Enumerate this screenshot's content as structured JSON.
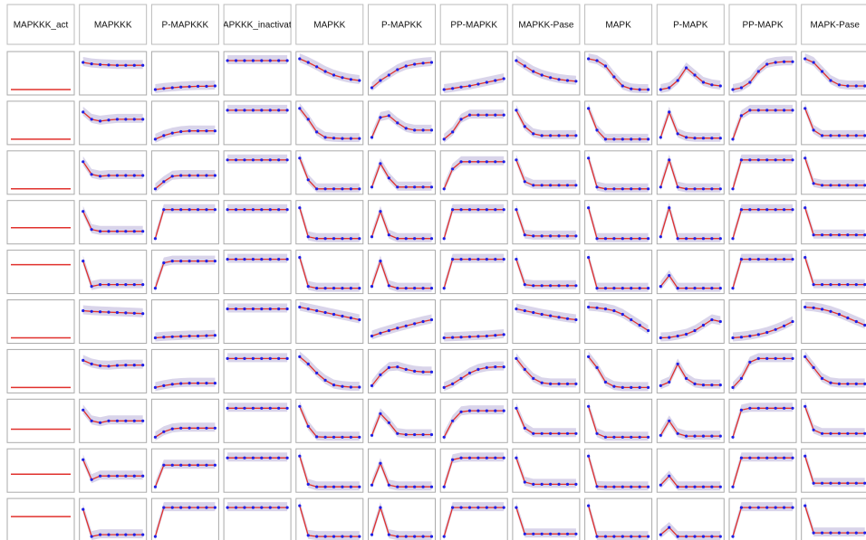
{
  "chart_data": {
    "type": "small-multiples",
    "columns": [
      "MAPKKK_act",
      "MAPKKK",
      "P-MAPKKK",
      "MAPKKK_inactivator",
      "MAPKK",
      "P-MAPKK",
      "PP-MAPKK",
      "MAPKK-Pase",
      "MAPK",
      "P-MAPK",
      "PP-MAPK",
      "MAPK-Pase"
    ],
    "line_color": "#e0302c",
    "dot_color": "#1f1fe6",
    "band_color": "#b9b0d8",
    "rows": [
      {
        "act": 0.05,
        "curves": [
          [
            0.8,
            0.76,
            0.74,
            0.73,
            0.72,
            0.72,
            0.72,
            0.72
          ],
          [
            0.05,
            0.08,
            0.1,
            0.12,
            0.13,
            0.14,
            0.14,
            0.15
          ],
          [
            0.85,
            0.85,
            0.85,
            0.85,
            0.85,
            0.85,
            0.85,
            0.85
          ],
          [
            0.9,
            0.8,
            0.68,
            0.55,
            0.45,
            0.38,
            0.33,
            0.3
          ],
          [
            0.1,
            0.3,
            0.45,
            0.6,
            0.7,
            0.75,
            0.78,
            0.8
          ],
          [
            0.05,
            0.08,
            0.12,
            0.15,
            0.2,
            0.25,
            0.3,
            0.35
          ],
          [
            0.85,
            0.7,
            0.55,
            0.45,
            0.38,
            0.33,
            0.3,
            0.28
          ],
          [
            0.9,
            0.85,
            0.7,
            0.4,
            0.15,
            0.07,
            0.05,
            0.05
          ],
          [
            0.05,
            0.1,
            0.3,
            0.65,
            0.45,
            0.25,
            0.18,
            0.15
          ],
          [
            0.05,
            0.1,
            0.25,
            0.55,
            0.75,
            0.8,
            0.82,
            0.82
          ],
          [
            0.9,
            0.8,
            0.55,
            0.3,
            0.18,
            0.15,
            0.15,
            0.15
          ]
        ]
      },
      {
        "act": 0.05,
        "curves": [
          [
            0.8,
            0.6,
            0.55,
            0.58,
            0.6,
            0.6,
            0.6,
            0.6
          ],
          [
            0.05,
            0.15,
            0.22,
            0.26,
            0.28,
            0.28,
            0.28,
            0.28
          ],
          [
            0.85,
            0.85,
            0.85,
            0.85,
            0.85,
            0.85,
            0.85,
            0.85
          ],
          [
            0.9,
            0.6,
            0.25,
            0.1,
            0.08,
            0.07,
            0.07,
            0.07
          ],
          [
            0.1,
            0.65,
            0.7,
            0.5,
            0.35,
            0.3,
            0.3,
            0.3
          ],
          [
            0.05,
            0.25,
            0.6,
            0.72,
            0.72,
            0.72,
            0.72,
            0.72
          ],
          [
            0.85,
            0.4,
            0.2,
            0.15,
            0.15,
            0.15,
            0.15,
            0.15
          ],
          [
            0.9,
            0.3,
            0.05,
            0.05,
            0.05,
            0.05,
            0.05,
            0.05
          ],
          [
            0.1,
            0.8,
            0.2,
            0.1,
            0.08,
            0.08,
            0.08,
            0.08
          ],
          [
            0.05,
            0.7,
            0.85,
            0.85,
            0.85,
            0.85,
            0.85,
            0.85
          ],
          [
            0.9,
            0.3,
            0.15,
            0.15,
            0.15,
            0.15,
            0.15,
            0.15
          ]
        ]
      },
      {
        "act": 0.05,
        "curves": [
          [
            0.8,
            0.45,
            0.4,
            0.42,
            0.42,
            0.42,
            0.42,
            0.42
          ],
          [
            0.05,
            0.25,
            0.4,
            0.42,
            0.42,
            0.42,
            0.42,
            0.42
          ],
          [
            0.85,
            0.85,
            0.85,
            0.85,
            0.85,
            0.85,
            0.85,
            0.85
          ],
          [
            0.9,
            0.3,
            0.05,
            0.05,
            0.05,
            0.05,
            0.05,
            0.05
          ],
          [
            0.1,
            0.75,
            0.35,
            0.1,
            0.1,
            0.1,
            0.1,
            0.1
          ],
          [
            0.05,
            0.6,
            0.8,
            0.8,
            0.8,
            0.8,
            0.8,
            0.8
          ],
          [
            0.85,
            0.25,
            0.15,
            0.15,
            0.15,
            0.15,
            0.15,
            0.15
          ],
          [
            0.9,
            0.1,
            0.05,
            0.05,
            0.05,
            0.05,
            0.05,
            0.05
          ],
          [
            0.1,
            0.85,
            0.1,
            0.05,
            0.05,
            0.05,
            0.05,
            0.05
          ],
          [
            0.05,
            0.85,
            0.85,
            0.85,
            0.85,
            0.85,
            0.85,
            0.85
          ],
          [
            0.9,
            0.2,
            0.15,
            0.15,
            0.15,
            0.15,
            0.15,
            0.15
          ]
        ]
      },
      {
        "act": 0.35,
        "curves": [
          [
            0.8,
            0.3,
            0.25,
            0.25,
            0.25,
            0.25,
            0.25,
            0.25
          ],
          [
            0.05,
            0.85,
            0.85,
            0.85,
            0.85,
            0.85,
            0.85,
            0.85
          ],
          [
            0.85,
            0.85,
            0.85,
            0.85,
            0.85,
            0.85,
            0.85,
            0.85
          ],
          [
            0.9,
            0.1,
            0.05,
            0.05,
            0.05,
            0.05,
            0.05,
            0.05
          ],
          [
            0.1,
            0.8,
            0.15,
            0.05,
            0.05,
            0.05,
            0.05,
            0.05
          ],
          [
            0.05,
            0.85,
            0.85,
            0.85,
            0.85,
            0.85,
            0.85,
            0.85
          ],
          [
            0.85,
            0.15,
            0.12,
            0.12,
            0.12,
            0.12,
            0.12,
            0.12
          ],
          [
            0.9,
            0.05,
            0.05,
            0.05,
            0.05,
            0.05,
            0.05,
            0.05
          ],
          [
            0.1,
            0.9,
            0.05,
            0.05,
            0.05,
            0.05,
            0.05,
            0.05
          ],
          [
            0.05,
            0.85,
            0.85,
            0.85,
            0.85,
            0.85,
            0.85,
            0.85
          ],
          [
            0.9,
            0.15,
            0.15,
            0.15,
            0.15,
            0.15,
            0.15,
            0.15
          ]
        ]
      },
      {
        "act": 0.7,
        "curves": [
          [
            0.8,
            0.1,
            0.15,
            0.15,
            0.15,
            0.15,
            0.15,
            0.15
          ],
          [
            0.05,
            0.75,
            0.8,
            0.8,
            0.8,
            0.8,
            0.8,
            0.8
          ],
          [
            0.85,
            0.85,
            0.85,
            0.85,
            0.85,
            0.85,
            0.85,
            0.85
          ],
          [
            0.9,
            0.1,
            0.05,
            0.05,
            0.05,
            0.05,
            0.05,
            0.05
          ],
          [
            0.1,
            0.8,
            0.12,
            0.05,
            0.05,
            0.05,
            0.05,
            0.05
          ],
          [
            0.05,
            0.85,
            0.85,
            0.85,
            0.85,
            0.85,
            0.85,
            0.85
          ],
          [
            0.85,
            0.15,
            0.12,
            0.12,
            0.12,
            0.12,
            0.12,
            0.12
          ],
          [
            0.9,
            0.05,
            0.05,
            0.05,
            0.05,
            0.05,
            0.05,
            0.05
          ],
          [
            0.1,
            0.4,
            0.05,
            0.05,
            0.05,
            0.05,
            0.05,
            0.05
          ],
          [
            0.05,
            0.85,
            0.85,
            0.85,
            0.85,
            0.85,
            0.85,
            0.85
          ],
          [
            0.9,
            0.15,
            0.15,
            0.15,
            0.15,
            0.15,
            0.15,
            0.15
          ]
        ]
      },
      {
        "act": 0.05,
        "curves": [
          [
            0.8,
            0.78,
            0.77,
            0.76,
            0.75,
            0.74,
            0.73,
            0.72
          ],
          [
            0.05,
            0.07,
            0.08,
            0.09,
            0.1,
            0.1,
            0.11,
            0.12
          ],
          [
            0.85,
            0.85,
            0.85,
            0.85,
            0.85,
            0.85,
            0.85,
            0.85
          ],
          [
            0.9,
            0.85,
            0.8,
            0.75,
            0.7,
            0.65,
            0.6,
            0.55
          ],
          [
            0.1,
            0.18,
            0.25,
            0.32,
            0.38,
            0.44,
            0.5,
            0.55
          ],
          [
            0.05,
            0.06,
            0.07,
            0.08,
            0.09,
            0.1,
            0.12,
            0.14
          ],
          [
            0.85,
            0.8,
            0.75,
            0.7,
            0.66,
            0.62,
            0.58,
            0.55
          ],
          [
            0.9,
            0.88,
            0.85,
            0.8,
            0.7,
            0.55,
            0.4,
            0.25
          ],
          [
            0.05,
            0.06,
            0.1,
            0.15,
            0.25,
            0.4,
            0.55,
            0.5
          ],
          [
            0.05,
            0.07,
            0.1,
            0.14,
            0.2,
            0.28,
            0.38,
            0.5
          ],
          [
            0.9,
            0.88,
            0.84,
            0.78,
            0.7,
            0.6,
            0.5,
            0.4
          ]
        ]
      },
      {
        "act": 0.05,
        "curves": [
          [
            0.8,
            0.7,
            0.65,
            0.64,
            0.66,
            0.67,
            0.67,
            0.67
          ],
          [
            0.05,
            0.1,
            0.14,
            0.16,
            0.17,
            0.17,
            0.17,
            0.17
          ],
          [
            0.85,
            0.85,
            0.85,
            0.85,
            0.85,
            0.85,
            0.85,
            0.85
          ],
          [
            0.9,
            0.7,
            0.45,
            0.25,
            0.12,
            0.08,
            0.06,
            0.06
          ],
          [
            0.1,
            0.4,
            0.6,
            0.62,
            0.55,
            0.5,
            0.48,
            0.48
          ],
          [
            0.05,
            0.15,
            0.3,
            0.45,
            0.55,
            0.6,
            0.62,
            0.62
          ],
          [
            0.85,
            0.55,
            0.3,
            0.18,
            0.15,
            0.15,
            0.15,
            0.15
          ],
          [
            0.9,
            0.6,
            0.2,
            0.08,
            0.05,
            0.05,
            0.05,
            0.05
          ],
          [
            0.1,
            0.2,
            0.7,
            0.3,
            0.15,
            0.12,
            0.12,
            0.12
          ],
          [
            0.05,
            0.3,
            0.75,
            0.85,
            0.85,
            0.85,
            0.85,
            0.85
          ],
          [
            0.9,
            0.6,
            0.3,
            0.18,
            0.15,
            0.15,
            0.15,
            0.15
          ]
        ]
      },
      {
        "act": 0.27,
        "curves": [
          [
            0.8,
            0.5,
            0.45,
            0.5,
            0.5,
            0.5,
            0.5,
            0.5
          ],
          [
            0.05,
            0.2,
            0.28,
            0.3,
            0.3,
            0.3,
            0.3,
            0.3
          ],
          [
            0.85,
            0.85,
            0.85,
            0.85,
            0.85,
            0.85,
            0.85,
            0.85
          ],
          [
            0.9,
            0.35,
            0.06,
            0.05,
            0.05,
            0.05,
            0.05,
            0.05
          ],
          [
            0.1,
            0.7,
            0.45,
            0.15,
            0.12,
            0.12,
            0.12,
            0.12
          ],
          [
            0.05,
            0.5,
            0.75,
            0.78,
            0.78,
            0.78,
            0.78,
            0.78
          ],
          [
            0.85,
            0.3,
            0.15,
            0.15,
            0.15,
            0.15,
            0.15,
            0.15
          ],
          [
            0.9,
            0.15,
            0.05,
            0.05,
            0.05,
            0.05,
            0.05,
            0.05
          ],
          [
            0.1,
            0.5,
            0.15,
            0.08,
            0.08,
            0.08,
            0.08,
            0.08
          ],
          [
            0.05,
            0.8,
            0.85,
            0.85,
            0.85,
            0.85,
            0.85,
            0.85
          ],
          [
            0.9,
            0.25,
            0.15,
            0.15,
            0.15,
            0.15,
            0.15,
            0.15
          ]
        ]
      },
      {
        "act": 0.4,
        "curves": [
          [
            0.8,
            0.25,
            0.35,
            0.35,
            0.35,
            0.35,
            0.35,
            0.35
          ],
          [
            0.05,
            0.65,
            0.65,
            0.65,
            0.65,
            0.65,
            0.65,
            0.65
          ],
          [
            0.85,
            0.85,
            0.85,
            0.85,
            0.85,
            0.85,
            0.85,
            0.85
          ],
          [
            0.9,
            0.12,
            0.05,
            0.05,
            0.05,
            0.05,
            0.05,
            0.05
          ],
          [
            0.1,
            0.7,
            0.1,
            0.05,
            0.05,
            0.05,
            0.05,
            0.05
          ],
          [
            0.05,
            0.8,
            0.85,
            0.85,
            0.85,
            0.85,
            0.85,
            0.85
          ],
          [
            0.85,
            0.18,
            0.12,
            0.12,
            0.12,
            0.12,
            0.12,
            0.12
          ],
          [
            0.9,
            0.06,
            0.05,
            0.05,
            0.05,
            0.05,
            0.05,
            0.05
          ],
          [
            0.1,
            0.35,
            0.05,
            0.05,
            0.05,
            0.05,
            0.05,
            0.05
          ],
          [
            0.05,
            0.85,
            0.85,
            0.85,
            0.85,
            0.85,
            0.85,
            0.85
          ],
          [
            0.9,
            0.15,
            0.15,
            0.15,
            0.15,
            0.15,
            0.15,
            0.15
          ]
        ]
      },
      {
        "act": 0.6,
        "curves": [
          [
            0.8,
            0.05,
            0.1,
            0.1,
            0.1,
            0.1,
            0.1,
            0.1
          ],
          [
            0.05,
            0.85,
            0.85,
            0.85,
            0.85,
            0.85,
            0.85,
            0.85
          ],
          [
            0.85,
            0.85,
            0.85,
            0.85,
            0.85,
            0.85,
            0.85,
            0.85
          ],
          [
            0.9,
            0.08,
            0.05,
            0.05,
            0.05,
            0.05,
            0.05,
            0.05
          ],
          [
            0.1,
            0.85,
            0.1,
            0.05,
            0.05,
            0.05,
            0.05,
            0.05
          ],
          [
            0.05,
            0.85,
            0.85,
            0.85,
            0.85,
            0.85,
            0.85,
            0.85
          ],
          [
            0.85,
            0.12,
            0.12,
            0.12,
            0.12,
            0.12,
            0.12,
            0.12
          ],
          [
            0.9,
            0.05,
            0.05,
            0.05,
            0.05,
            0.05,
            0.05,
            0.05
          ],
          [
            0.1,
            0.3,
            0.05,
            0.05,
            0.05,
            0.05,
            0.05,
            0.05
          ],
          [
            0.05,
            0.85,
            0.85,
            0.85,
            0.85,
            0.85,
            0.85,
            0.85
          ],
          [
            0.9,
            0.15,
            0.15,
            0.15,
            0.15,
            0.15,
            0.15,
            0.15
          ]
        ]
      }
    ]
  }
}
